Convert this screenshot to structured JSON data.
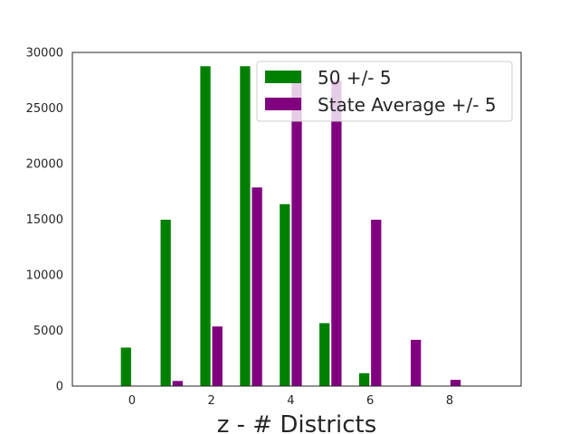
{
  "chart_data": {
    "type": "bar",
    "title": "",
    "xlabel": "z - # Districts",
    "ylabel": "",
    "xlim": [
      -1.5,
      9.8
    ],
    "ylim": [
      0,
      30000
    ],
    "xticks": [
      0,
      2,
      4,
      6,
      8
    ],
    "yticks": [
      0,
      5000,
      10000,
      15000,
      20000,
      25000,
      30000
    ],
    "grid": false,
    "legend_position": "top-right",
    "bar_width": 0.28,
    "series": [
      {
        "name": "50 +/- 5",
        "color": "#008000",
        "x": [
          0,
          1,
          2,
          3,
          4,
          5,
          6
        ],
        "values": [
          3500,
          15000,
          28800,
          28800,
          16400,
          5700,
          1200
        ]
      },
      {
        "name": "State Average +/- 5",
        "color": "#800080",
        "x": [
          1,
          2,
          3,
          4,
          5,
          6,
          7,
          8
        ],
        "values": [
          500,
          5400,
          17900,
          28300,
          27500,
          15000,
          4200,
          600
        ]
      }
    ]
  }
}
